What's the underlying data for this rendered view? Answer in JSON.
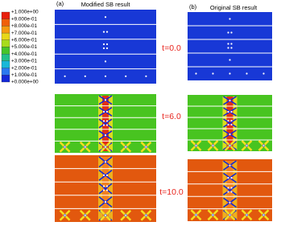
{
  "legend": {
    "labels": [
      "+1.000e+00",
      "+9.000e-01",
      "+8.000e-01",
      "+7.000e-01",
      "+6.000e-01",
      "+5.000e-01",
      "+4.000e-01",
      "+3.000e-01",
      "+2.000e-01",
      "+1.000e-01",
      "+0.000e+00"
    ]
  },
  "panels": {
    "a": {
      "label": "(a)",
      "title": "Modified SB result"
    },
    "b": {
      "label": "(b)",
      "title": "Original SB result"
    }
  },
  "times": [
    "t=0.0",
    "t=6.0",
    "t=10.0"
  ]
}
